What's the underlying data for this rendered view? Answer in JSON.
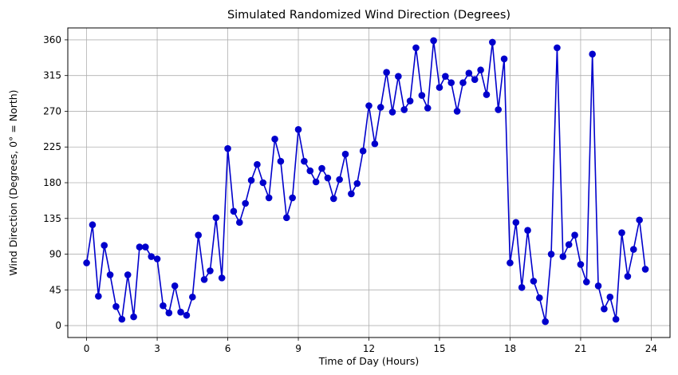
{
  "chart_data": {
    "type": "line",
    "title": "Simulated Randomized Wind Direction (Degrees)",
    "xlabel": "Time of Day (Hours)",
    "ylabel": "Wind Direction (Degrees, 0° = North)",
    "xlim": [
      -0.8,
      24.8
    ],
    "ylim": [
      -15,
      375
    ],
    "xticks": [
      0,
      3,
      6,
      9,
      12,
      15,
      18,
      21,
      24
    ],
    "yticks": [
      0,
      45,
      90,
      135,
      180,
      225,
      270,
      315,
      360
    ],
    "grid": true,
    "color": "#0000cc",
    "marker": "circle",
    "series": [
      {
        "x": [
          0.0,
          0.25,
          0.5,
          0.75,
          1.0,
          1.25,
          1.5,
          1.75,
          2.0,
          2.25,
          2.5,
          2.75,
          3.0,
          3.25,
          3.5,
          3.75,
          4.0,
          4.25,
          4.5,
          4.75,
          5.0,
          5.25,
          5.5,
          5.75,
          6.0,
          6.25,
          6.5,
          6.75,
          7.0,
          7.25,
          7.5,
          7.75,
          8.0,
          8.25,
          8.5,
          8.75,
          9.0,
          9.25,
          9.5,
          9.75,
          10.0,
          10.25,
          10.5,
          10.75,
          11.0,
          11.25,
          11.5,
          11.75,
          12.0,
          12.25,
          12.5,
          12.75,
          13.0,
          13.25,
          13.5,
          13.75,
          14.0,
          14.25,
          14.5,
          14.75,
          15.0,
          15.25,
          15.5,
          15.75,
          16.0,
          16.25,
          16.5,
          16.75,
          17.0,
          17.25,
          17.5,
          17.75,
          18.0,
          18.25,
          18.5,
          18.75,
          19.0,
          19.25,
          19.5,
          19.75,
          20.0,
          20.25,
          20.5,
          20.75,
          21.0,
          21.25,
          21.5,
          21.75,
          22.0,
          22.25,
          22.5,
          22.75,
          23.0,
          23.25,
          23.5,
          23.75
        ],
        "y": [
          79,
          127,
          37,
          101,
          64,
          24,
          8,
          64,
          11,
          99,
          99,
          87,
          84,
          25,
          16,
          50,
          17,
          13,
          36,
          114,
          58,
          69,
          136,
          60,
          223,
          144,
          130,
          154,
          183,
          203,
          180,
          161,
          235,
          207,
          136,
          161,
          247,
          207,
          195,
          181,
          198,
          186,
          160,
          184,
          216,
          166,
          179,
          220,
          277,
          229,
          275,
          319,
          269,
          314,
          272,
          283,
          350,
          290,
          274,
          359,
          300,
          314,
          306,
          270,
          306,
          318,
          310,
          322,
          291,
          357,
          272,
          336,
          79,
          130,
          48,
          120,
          56,
          35,
          5,
          90,
          350,
          87,
          102,
          114,
          77,
          55,
          342,
          50,
          21,
          36,
          8,
          117,
          62,
          96,
          133,
          71
        ]
      }
    ]
  }
}
